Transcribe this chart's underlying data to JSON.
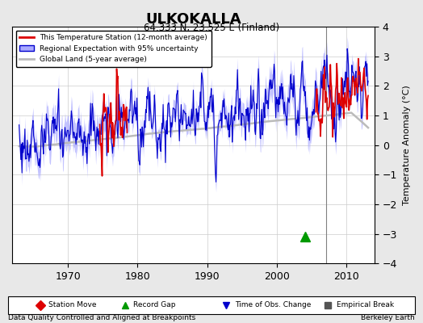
{
  "title": "ULKOKALLA",
  "subtitle": "64.333 N, 23.525 E (Finland)",
  "ylabel": "Temperature Anomaly (°C)",
  "xlabel_bottom": "Data Quality Controlled and Aligned at Breakpoints",
  "xlabel_right": "Berkeley Earth",
  "ylim": [
    -4,
    4
  ],
  "xlim": [
    1962,
    2014
  ],
  "yticks": [
    -4,
    -3,
    -2,
    -1,
    0,
    1,
    2,
    3,
    4
  ],
  "xticks": [
    1970,
    1980,
    1990,
    2000,
    2010
  ],
  "grid_color": "#cccccc",
  "bg_color": "#e8e8e8",
  "plot_bg_color": "#ffffff",
  "station_line_color": "#dd0000",
  "regional_line_color": "#0000cc",
  "regional_fill_color": "#aaaaff",
  "global_line_color": "#bbbbbb",
  "vertical_line_x": 2007,
  "record_gap_x": 2004,
  "record_gap_y": -3.1,
  "legend_entries": [
    "This Temperature Station (12-month average)",
    "Regional Expectation with 95% uncertainty",
    "Global Land (5-year average)"
  ],
  "bottom_legend": [
    {
      "label": "Station Move",
      "color": "#dd0000",
      "marker": "D"
    },
    {
      "label": "Record Gap",
      "color": "#009900",
      "marker": "^"
    },
    {
      "label": "Time of Obs. Change",
      "color": "#0000cc",
      "marker": "v"
    },
    {
      "label": "Empirical Break",
      "color": "#555555",
      "marker": "s"
    }
  ]
}
